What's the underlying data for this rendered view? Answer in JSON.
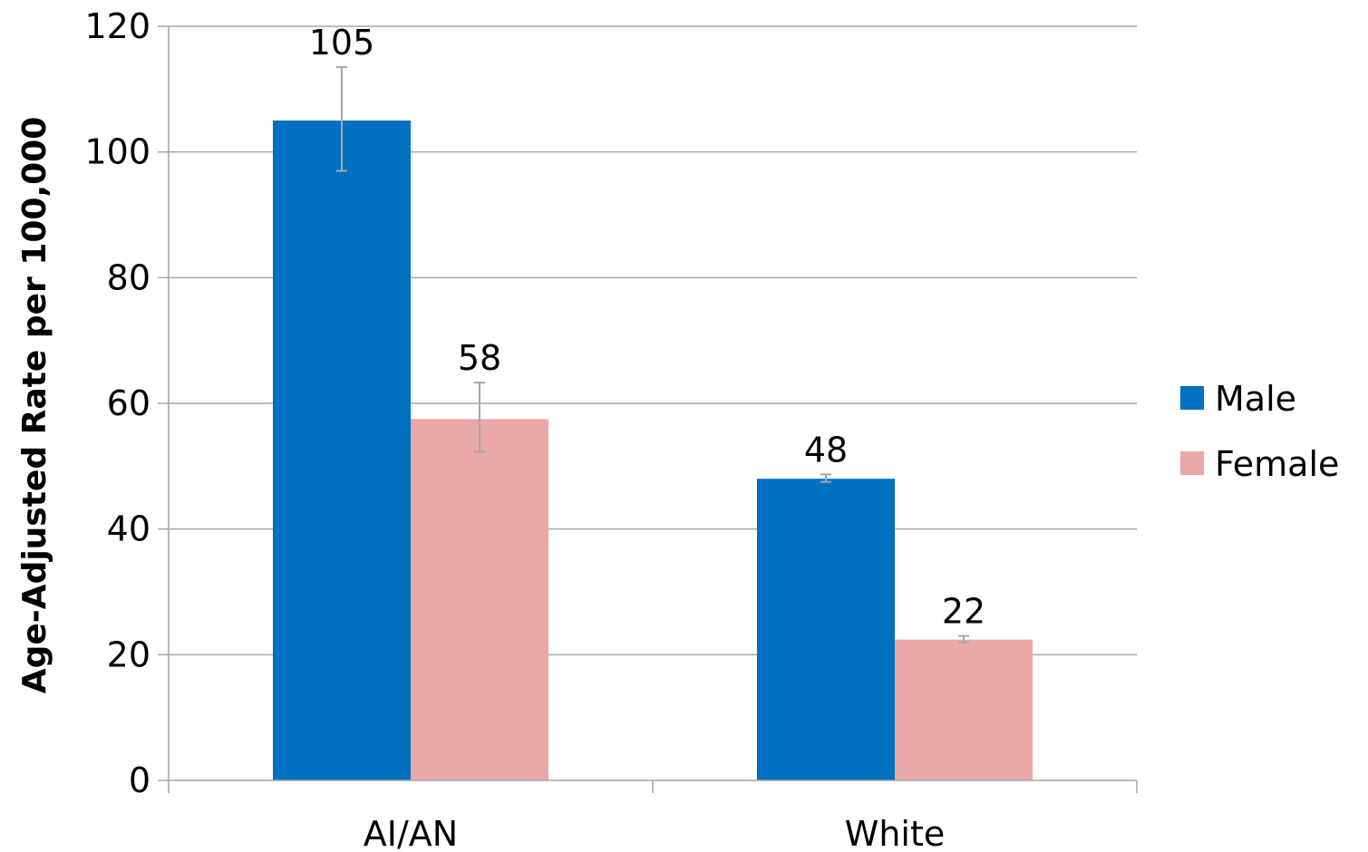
{
  "chart_data": {
    "type": "bar",
    "title": "",
    "xlabel": "",
    "ylabel": "Age-Adjusted Rate per 100,000",
    "categories": [
      "AI/AN",
      "White"
    ],
    "series": [
      {
        "name": "Male",
        "color": "#0070C0",
        "values": [
          105,
          48
        ],
        "labels": [
          "105",
          "48"
        ],
        "error_low": [
          97,
          47.5
        ],
        "error_high": [
          113.5,
          48.7
        ]
      },
      {
        "name": "Female",
        "color": "#EAA7A8",
        "values": [
          57.5,
          22.4
        ],
        "labels": [
          "58",
          "22"
        ],
        "error_low": [
          52.3,
          22
        ],
        "error_high": [
          63.3,
          23
        ]
      }
    ],
    "ylim": [
      0,
      120
    ],
    "yticks": [
      0,
      20,
      40,
      60,
      80,
      100,
      120
    ],
    "grid": true,
    "legend_position": "right",
    "gridline_color": "#A6A6A6",
    "errorbar_color": "#A6A6A6"
  }
}
